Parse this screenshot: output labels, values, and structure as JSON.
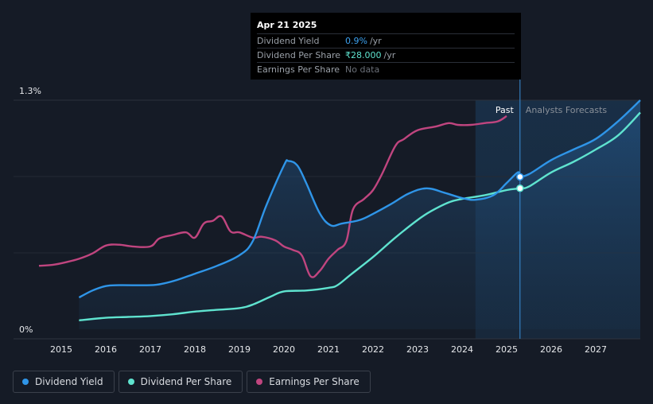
{
  "tooltip": {
    "date": "Apr 21 2025",
    "rows": [
      {
        "label": "Dividend Yield",
        "value": "0.9%",
        "unit": "/yr"
      },
      {
        "label": "Dividend Per Share",
        "value": "₹28.000",
        "unit": "/yr"
      },
      {
        "label": "Earnings Per Share",
        "value": "No data"
      }
    ]
  },
  "chart_data": {
    "type": "line",
    "y_top_label": "1.3%",
    "y_bottom_label": "0%",
    "ylim": [
      0,
      1.3
    ],
    "xlim": [
      2014.3,
      2028.0
    ],
    "x_ticks": [
      "2015",
      "2016",
      "2017",
      "2018",
      "2019",
      "2020",
      "2021",
      "2022",
      "2023",
      "2024",
      "2025",
      "2026",
      "2027"
    ],
    "past_label": "Past",
    "forecast_label": "Analysts Forecasts",
    "past_start": 2024.3,
    "now": 2025.3,
    "colors": {
      "yield": "#2f95e8",
      "dps": "#5fe3cf",
      "eps": "#c0457f",
      "forecast_band": "#1b3d5c"
    },
    "series": [
      {
        "name": "Dividend Yield",
        "x": [
          2015.4,
          2015.7,
          2016.0,
          2016.3,
          2017.0,
          2017.3,
          2017.6,
          2018.0,
          2018.5,
          2019.0,
          2019.3,
          2019.6,
          2020.0,
          2020.1,
          2020.3,
          2020.5,
          2020.8,
          2021.05,
          2021.3,
          2021.7,
          2022.0,
          2022.4,
          2022.8,
          2023.2,
          2023.6,
          2024.0,
          2024.3,
          2024.7,
          2025.0,
          2025.25,
          2025.3,
          2025.5,
          2026.0,
          2026.5,
          2027.0,
          2027.5,
          2028.0
        ],
        "values": [
          0.18,
          0.22,
          0.245,
          0.25,
          0.25,
          0.26,
          0.28,
          0.315,
          0.36,
          0.42,
          0.5,
          0.7,
          0.93,
          0.955,
          0.93,
          0.83,
          0.66,
          0.59,
          0.6,
          0.62,
          0.655,
          0.71,
          0.77,
          0.8,
          0.775,
          0.745,
          0.735,
          0.76,
          0.83,
          0.89,
          0.87,
          0.88,
          0.96,
          1.02,
          1.08,
          1.18,
          1.3
        ]
      },
      {
        "name": "Dividend Per Share",
        "x": [
          2015.4,
          2016.0,
          2016.5,
          2017.0,
          2017.5,
          2018.0,
          2018.5,
          2019.0,
          2019.3,
          2019.7,
          2020.0,
          2020.5,
          2021.0,
          2021.2,
          2021.5,
          2022.0,
          2022.5,
          2023.0,
          2023.3,
          2023.7,
          2024.0,
          2024.5,
          2025.0,
          2025.3,
          2025.5,
          2026.0,
          2026.5,
          2027.0,
          2027.5,
          2028.0
        ],
        "values": [
          0.05,
          0.065,
          0.07,
          0.075,
          0.085,
          0.1,
          0.11,
          0.12,
          0.14,
          0.185,
          0.215,
          0.22,
          0.235,
          0.25,
          0.31,
          0.41,
          0.52,
          0.62,
          0.67,
          0.72,
          0.74,
          0.76,
          0.79,
          0.8,
          0.81,
          0.89,
          0.95,
          1.02,
          1.1,
          1.23
        ]
      },
      {
        "name": "Earnings Per Share",
        "x": [
          2014.5,
          2014.8,
          2015.1,
          2015.4,
          2015.7,
          2016.0,
          2016.3,
          2016.6,
          2017.0,
          2017.2,
          2017.5,
          2017.8,
          2018.0,
          2018.2,
          2018.4,
          2018.6,
          2018.8,
          2019.0,
          2019.3,
          2019.5,
          2019.8,
          2020.0,
          2020.2,
          2020.4,
          2020.6,
          2020.8,
          2021.0,
          2021.2,
          2021.4,
          2021.55,
          2021.8,
          2022.0,
          2022.2,
          2022.5,
          2022.7,
          2023.0,
          2023.4,
          2023.7,
          2023.9,
          2024.2,
          2024.5,
          2024.8,
          2025.0
        ],
        "values": [
          0.36,
          0.365,
          0.38,
          0.4,
          0.43,
          0.475,
          0.48,
          0.47,
          0.47,
          0.515,
          0.535,
          0.55,
          0.52,
          0.6,
          0.615,
          0.64,
          0.555,
          0.55,
          0.52,
          0.525,
          0.505,
          0.47,
          0.45,
          0.42,
          0.3,
          0.33,
          0.4,
          0.45,
          0.5,
          0.68,
          0.74,
          0.79,
          0.88,
          1.04,
          1.08,
          1.13,
          1.15,
          1.17,
          1.16,
          1.16,
          1.17,
          1.18,
          1.21
        ]
      }
    ],
    "markers": [
      {
        "series": "Dividend Yield",
        "x": 2025.3,
        "value": 0.865
      },
      {
        "series": "Dividend Per Share",
        "x": 2025.3,
        "value": 0.8
      }
    ]
  },
  "legend": [
    {
      "label": "Dividend Yield",
      "color": "#2f95e8"
    },
    {
      "label": "Dividend Per Share",
      "color": "#5fe3cf"
    },
    {
      "label": "Earnings Per Share",
      "color": "#c0457f"
    }
  ]
}
